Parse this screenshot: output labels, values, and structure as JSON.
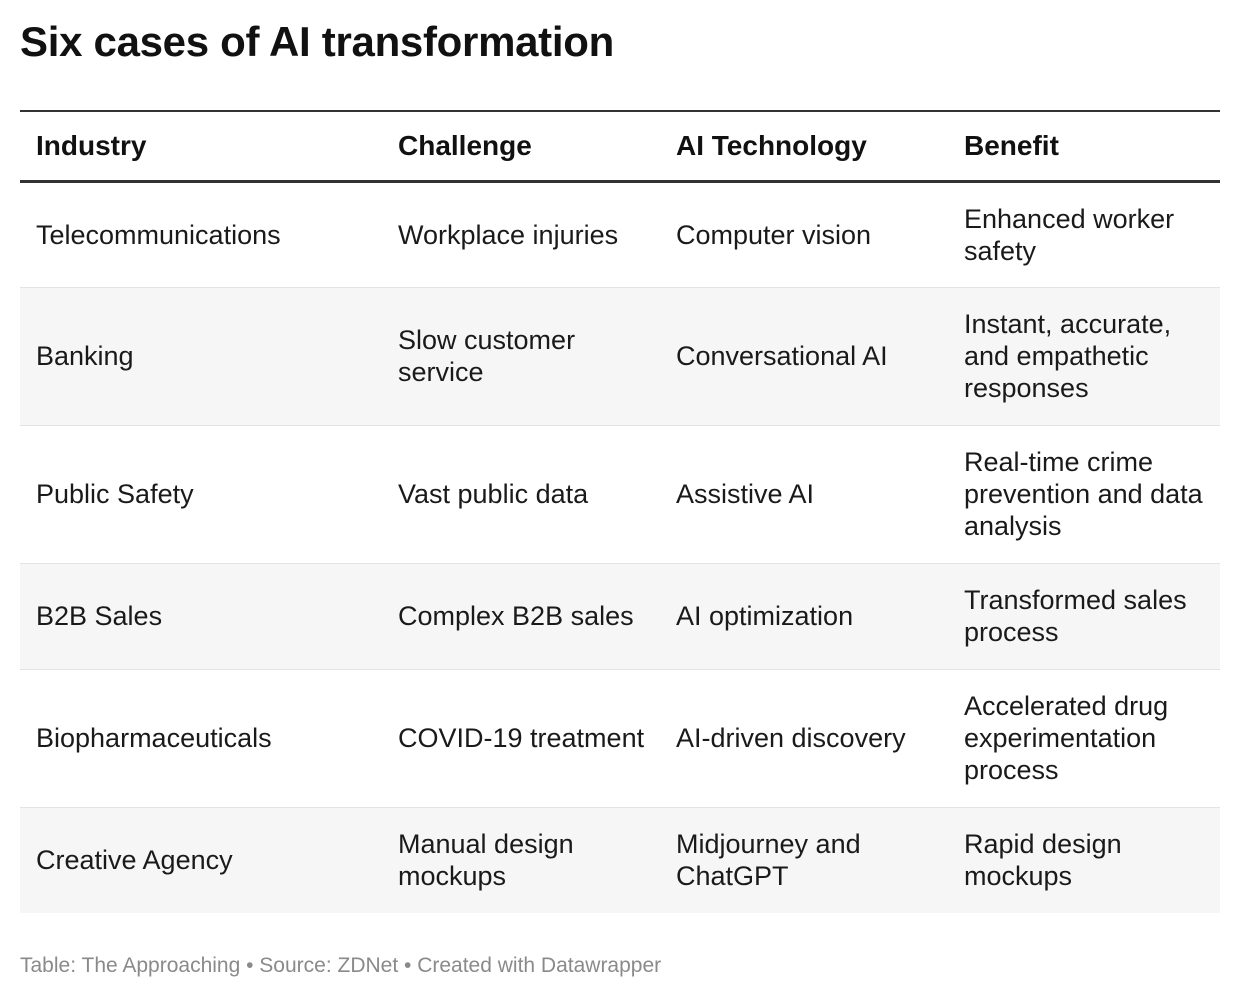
{
  "title": "Six cases of AI transformation",
  "table": {
    "headers": [
      "Industry",
      "Challenge",
      "AI Technology",
      "Benefit"
    ],
    "rows": [
      [
        "Telecommunications",
        "Workplace injuries",
        "Computer vision",
        "Enhanced worker safety"
      ],
      [
        "Banking",
        "Slow customer service",
        "Conversational AI",
        "Instant, accurate, and empathetic responses"
      ],
      [
        "Public Safety",
        "Vast public data",
        "Assistive AI",
        "Real-time crime prevention and data analysis"
      ],
      [
        "B2B Sales",
        "Complex B2B sales",
        "AI optimization",
        "Transformed sales process"
      ],
      [
        "Biopharmaceuticals",
        "COVID-19 treatment",
        "AI-driven discovery",
        "Accelerated drug experimentation process"
      ],
      [
        "Creative Agency",
        "Manual design mockups",
        "Midjourney and ChatGPT",
        "Rapid design mockups"
      ]
    ]
  },
  "footer": "Table: The Approaching • Source: ZDNet • Created with Datawrapper"
}
